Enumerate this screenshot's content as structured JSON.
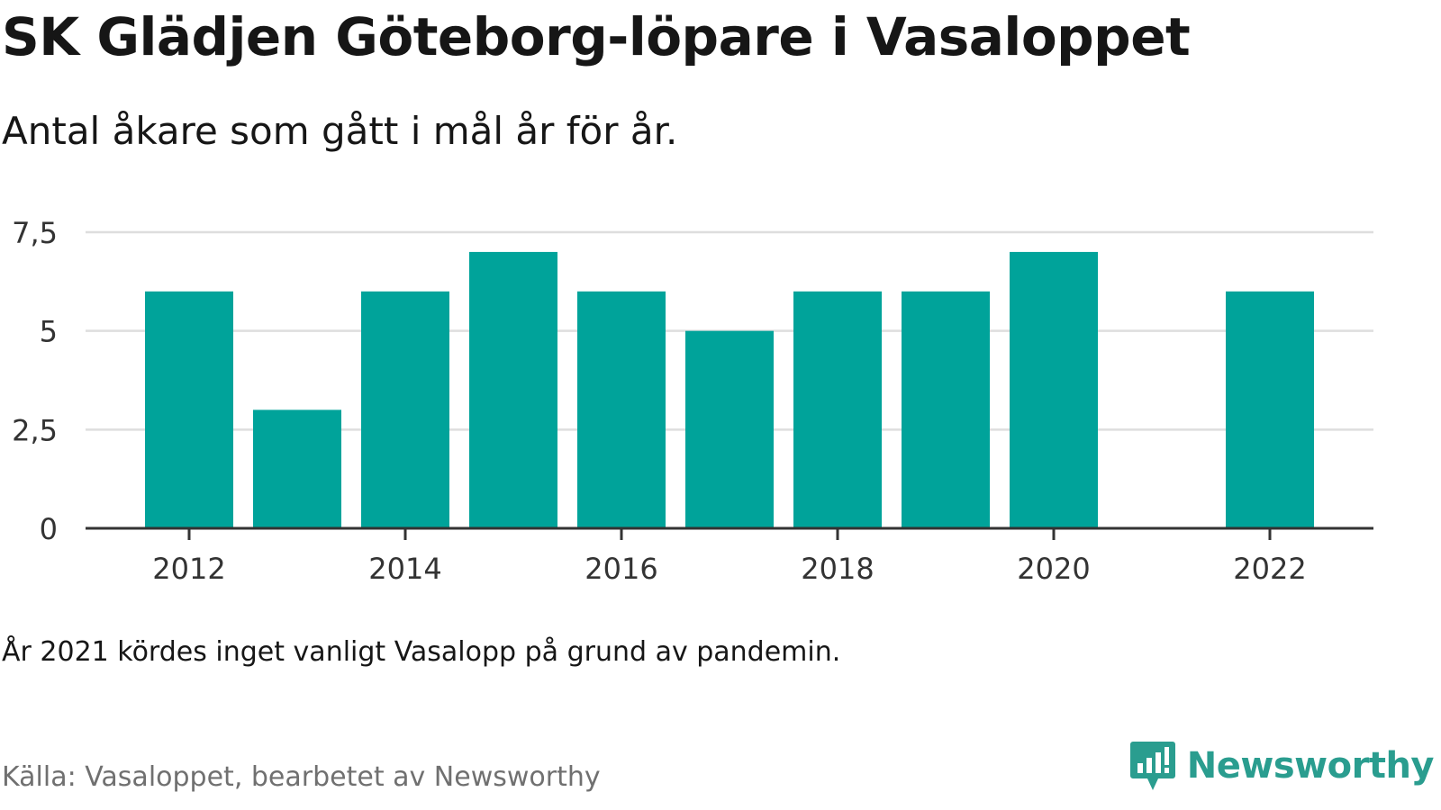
{
  "header": {
    "title": "SK Glädjen Göteborg-löpare i Vasaloppet",
    "subtitle": "Antal åkare som gått i mål år för år."
  },
  "footer": {
    "note": "År 2021 kördes inget vanligt Vasalopp på grund av pandemin.",
    "source": "Källa: Vasaloppet, bearbetet av Newsworthy",
    "brand": "Newsworthy",
    "brand_icon": "newsworthy-bar-chart-logo-icon"
  },
  "colors": {
    "bar": "#00a39a",
    "grid": "#dedede",
    "axis": "#333333",
    "brand": "#2a9d8f"
  },
  "chart_data": {
    "type": "bar",
    "title": "SK Glädjen Göteborg-löpare i Vasaloppet",
    "subtitle": "Antal åkare som gått i mål år för år.",
    "categories": [
      2012,
      2013,
      2014,
      2015,
      2016,
      2017,
      2018,
      2019,
      2020,
      2021,
      2022
    ],
    "values": [
      6,
      3,
      6,
      7,
      6,
      5,
      6,
      6,
      7,
      null,
      6
    ],
    "xticks": [
      "2012",
      "2014",
      "2016",
      "2018",
      "2020",
      "2022"
    ],
    "yticks": [
      "0",
      "2,5",
      "5",
      "7,5"
    ],
    "ytick_values": [
      0,
      2.5,
      5,
      7.5
    ],
    "ylim": [
      0,
      7.5
    ],
    "xlabel": "",
    "ylabel": "",
    "grid": true,
    "legend": "none"
  }
}
